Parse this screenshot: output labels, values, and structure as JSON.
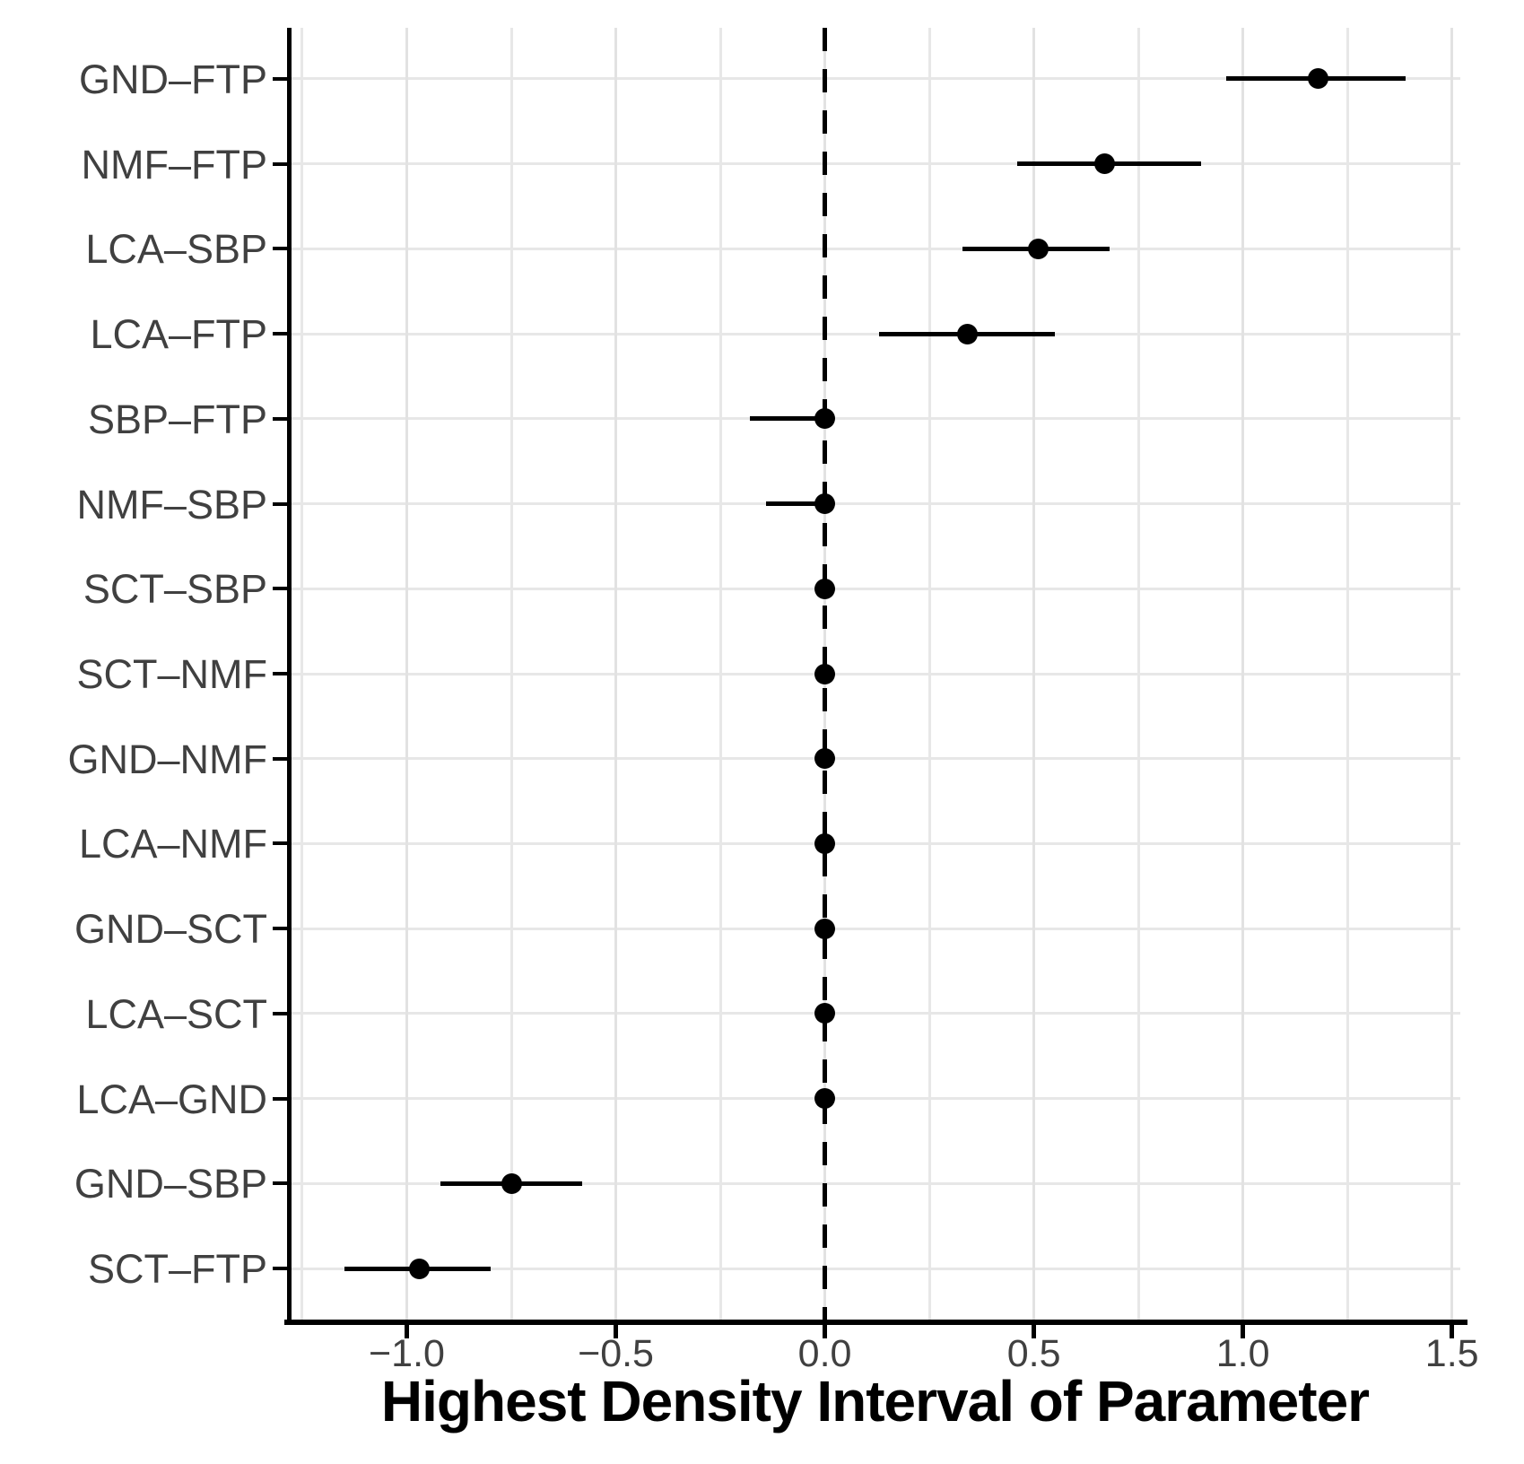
{
  "chart_data": {
    "type": "scatter",
    "style": "horizontal pointrange (forest plot of highest density intervals)",
    "title": "",
    "xlabel": "Highest Density Interval of Parameter",
    "ylabel": "",
    "categories": [
      "GND-FTP",
      "NMF-FTP",
      "LCA-SBP",
      "LCA-FTP",
      "SBP-FTP",
      "NMF-SBP",
      "SCT-SBP",
      "SCT-NMF",
      "GND-NMF",
      "LCA-NMF",
      "GND-SCT",
      "LCA-SCT",
      "LCA-GND",
      "GND-SBP",
      "SCT-FTP"
    ],
    "series": [
      {
        "name": "HDI",
        "points": [
          {
            "label": "GND-FTP",
            "estimate": 1.18,
            "lower": 0.96,
            "upper": 1.39
          },
          {
            "label": "NMF-FTP",
            "estimate": 0.67,
            "lower": 0.46,
            "upper": 0.9
          },
          {
            "label": "LCA-SBP",
            "estimate": 0.51,
            "lower": 0.33,
            "upper": 0.68
          },
          {
            "label": "LCA-FTP",
            "estimate": 0.34,
            "lower": 0.13,
            "upper": 0.55
          },
          {
            "label": "SBP-FTP",
            "estimate": 0.0,
            "lower": -0.18,
            "upper": 0.02
          },
          {
            "label": "NMF-SBP",
            "estimate": 0.0,
            "lower": -0.14,
            "upper": 0.02
          },
          {
            "label": "SCT-SBP",
            "estimate": 0.0,
            "lower": -0.02,
            "upper": 0.02
          },
          {
            "label": "SCT-NMF",
            "estimate": 0.0,
            "lower": -0.02,
            "upper": 0.02
          },
          {
            "label": "GND-NMF",
            "estimate": 0.0,
            "lower": -0.02,
            "upper": 0.02
          },
          {
            "label": "LCA-NMF",
            "estimate": 0.0,
            "lower": -0.02,
            "upper": 0.02
          },
          {
            "label": "GND-SCT",
            "estimate": 0.0,
            "lower": -0.02,
            "upper": 0.02
          },
          {
            "label": "LCA-SCT",
            "estimate": 0.0,
            "lower": -0.02,
            "upper": 0.02
          },
          {
            "label": "LCA-GND",
            "estimate": 0.0,
            "lower": -0.02,
            "upper": 0.02
          },
          {
            "label": "GND-SBP",
            "estimate": -0.75,
            "lower": -0.92,
            "upper": -0.58
          },
          {
            "label": "SCT-FTP",
            "estimate": -0.97,
            "lower": -1.15,
            "upper": -0.8
          }
        ]
      }
    ],
    "xlim": [
      -1.28,
      1.52
    ],
    "x_ticks": [
      {
        "value": -1.0,
        "label": "−1.0"
      },
      {
        "value": -0.5,
        "label": "−0.5"
      },
      {
        "value": 0.0,
        "label": "0.0"
      },
      {
        "value": 0.5,
        "label": "0.5"
      },
      {
        "value": 1.0,
        "label": "1.0"
      },
      {
        "value": 1.5,
        "label": "1.5"
      }
    ],
    "x_minor_step": 0.25,
    "reference_line_x": 0.0,
    "grid": "vertical gridlines every 0.25 (major at 0.5 steps); horizontal gridline at each category row",
    "legend": false
  },
  "colors": {
    "point": "#000000",
    "error_bar": "#000000",
    "reference_line": "#000000",
    "axis_line": "#000000",
    "axis_text": "#404040",
    "axis_title": "#000000",
    "grid_major": "#e2e2e2",
    "grid_minor": "#e7e7e7",
    "background": "#ffffff"
  }
}
